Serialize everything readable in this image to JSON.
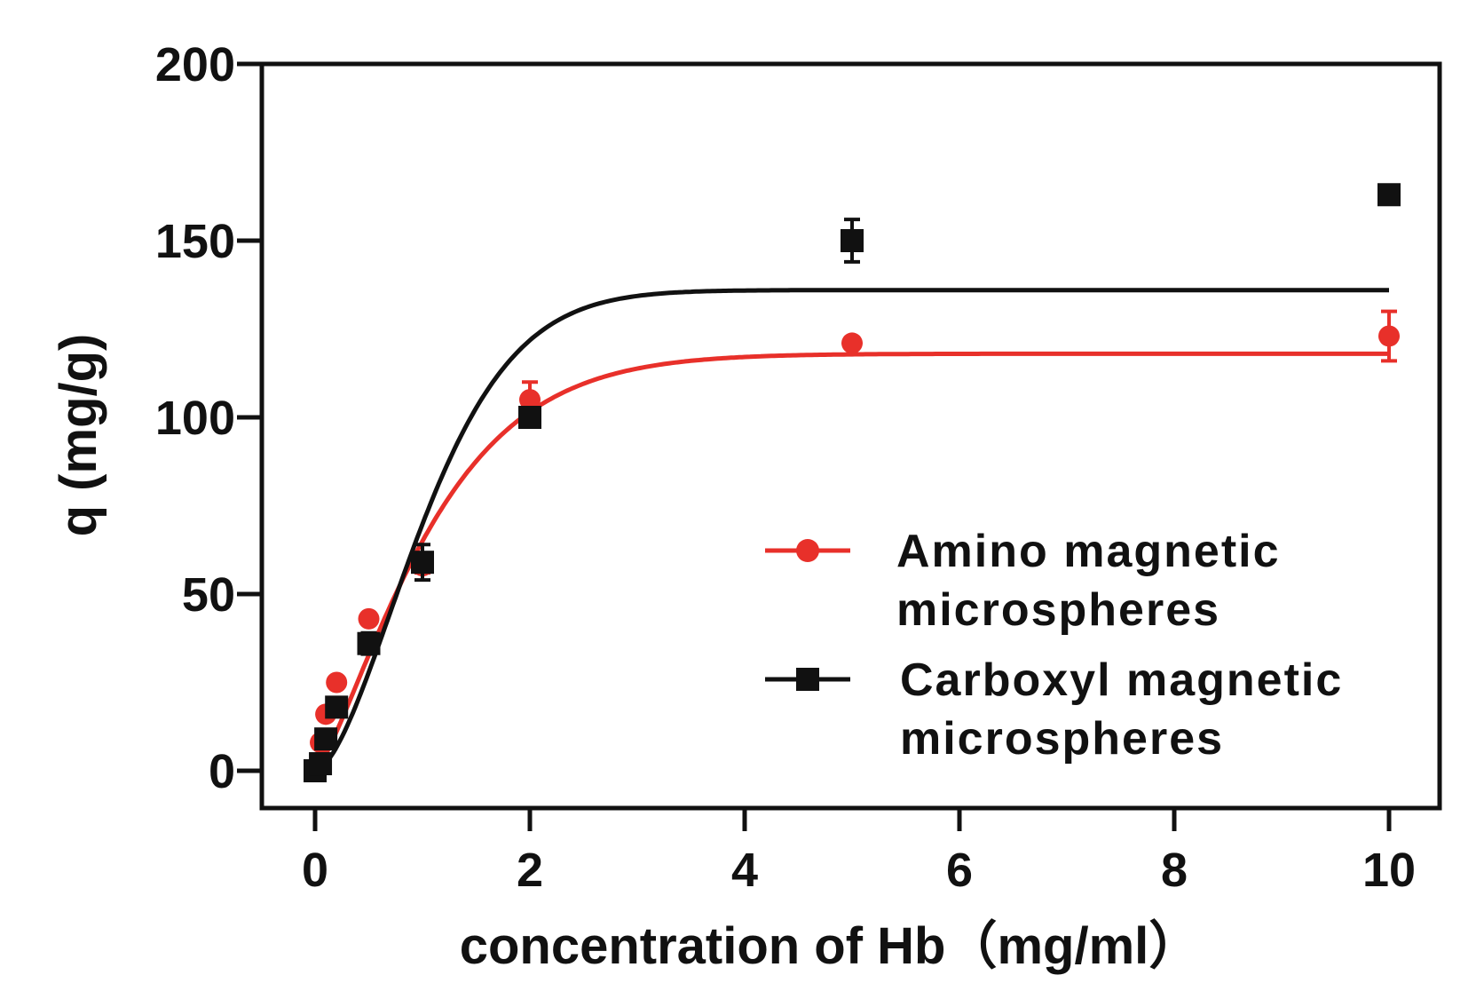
{
  "chart_data": {
    "type": "scatter",
    "title": "",
    "xlabel": "concentration of Hb（mg/ml）",
    "ylabel": "q (mg/g)",
    "xlim": [
      -0.5,
      10.5
    ],
    "ylim": [
      -10,
      200
    ],
    "xticks": [
      0,
      2,
      4,
      6,
      8,
      10
    ],
    "yticks": [
      0,
      50,
      100,
      150,
      200
    ],
    "xtick_labels": [
      "0",
      "2",
      "4",
      "6",
      "8",
      "10"
    ],
    "ytick_labels": [
      "0",
      "50",
      "100",
      "150",
      "200"
    ],
    "grid": false,
    "legend_position": "lower-right",
    "series": [
      {
        "name": "Amino magnetic microspheres",
        "legend_lines": [
          "Amino magnetic",
          "microspheres"
        ],
        "color": "#e8302a",
        "marker": "circle",
        "points": [
          {
            "x": 0.0,
            "y": 0,
            "err": 0
          },
          {
            "x": 0.05,
            "y": 8,
            "err": 0
          },
          {
            "x": 0.1,
            "y": 16,
            "err": 0
          },
          {
            "x": 0.2,
            "y": 25,
            "err": 0
          },
          {
            "x": 0.5,
            "y": 43,
            "err": 0
          },
          {
            "x": 1.0,
            "y": 58,
            "err": 2
          },
          {
            "x": 2.0,
            "y": 105,
            "err": 5
          },
          {
            "x": 5.0,
            "y": 121,
            "err": 1.5
          },
          {
            "x": 10.0,
            "y": 123,
            "err": 7
          }
        ],
        "fit": {
          "model": "q = qmax*(1-exp(-k*c^n))",
          "qmax": 118,
          "k": 0.8,
          "n": 1.3
        }
      },
      {
        "name": "Carboxyl magnetic microspheres",
        "legend_lines": [
          "Carboxyl magnetic",
          "microspheres"
        ],
        "color": "#111111",
        "marker": "square",
        "points": [
          {
            "x": 0.0,
            "y": 0,
            "err": 0
          },
          {
            "x": 0.05,
            "y": 2,
            "err": 0
          },
          {
            "x": 0.1,
            "y": 9,
            "err": 0
          },
          {
            "x": 0.2,
            "y": 18,
            "err": 0
          },
          {
            "x": 0.5,
            "y": 36,
            "err": 3
          },
          {
            "x": 1.0,
            "y": 59,
            "err": 5
          },
          {
            "x": 2.0,
            "y": 100,
            "err": 0
          },
          {
            "x": 5.0,
            "y": 150,
            "err": 6
          },
          {
            "x": 10.0,
            "y": 163,
            "err": 0
          }
        ],
        "fit": {
          "model": "q = qmax*(1-exp(-k*c^n))",
          "qmax": 136,
          "k": 0.72,
          "n": 1.65
        }
      }
    ]
  }
}
